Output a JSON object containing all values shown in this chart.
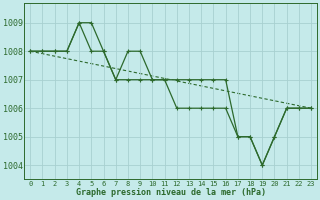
{
  "bg_color": "#c5eaea",
  "grid_color": "#a8d0d0",
  "line_color": "#2d6a2d",
  "xlabel": "Graphe pression niveau de la mer (hPa)",
  "ylim": [
    1003.5,
    1009.7
  ],
  "xlim": [
    -0.5,
    23.5
  ],
  "yticks": [
    1004,
    1005,
    1006,
    1007,
    1008,
    1009
  ],
  "xticks": [
    0,
    1,
    2,
    3,
    4,
    5,
    6,
    7,
    8,
    9,
    10,
    11,
    12,
    13,
    14,
    15,
    16,
    17,
    18,
    19,
    20,
    21,
    22,
    23
  ],
  "series1": [
    1008,
    1008,
    1008,
    1008,
    1009,
    1009,
    1008,
    1007,
    1008,
    1008,
    1007,
    1007,
    1007,
    1007,
    1007,
    1007,
    1007,
    1005,
    1005,
    1004,
    1005,
    1006,
    1006,
    1006
  ],
  "series2": [
    1008,
    1008,
    1008,
    1008,
    1009,
    1008,
    1008,
    1007,
    1007,
    1007,
    1007,
    1007,
    1006,
    1006,
    1006,
    1006,
    1006,
    1005,
    1005,
    1004,
    1005,
    1006,
    1006,
    1006
  ],
  "series3_x": [
    0,
    23
  ],
  "series3_y": [
    1008.0,
    1006.0
  ]
}
